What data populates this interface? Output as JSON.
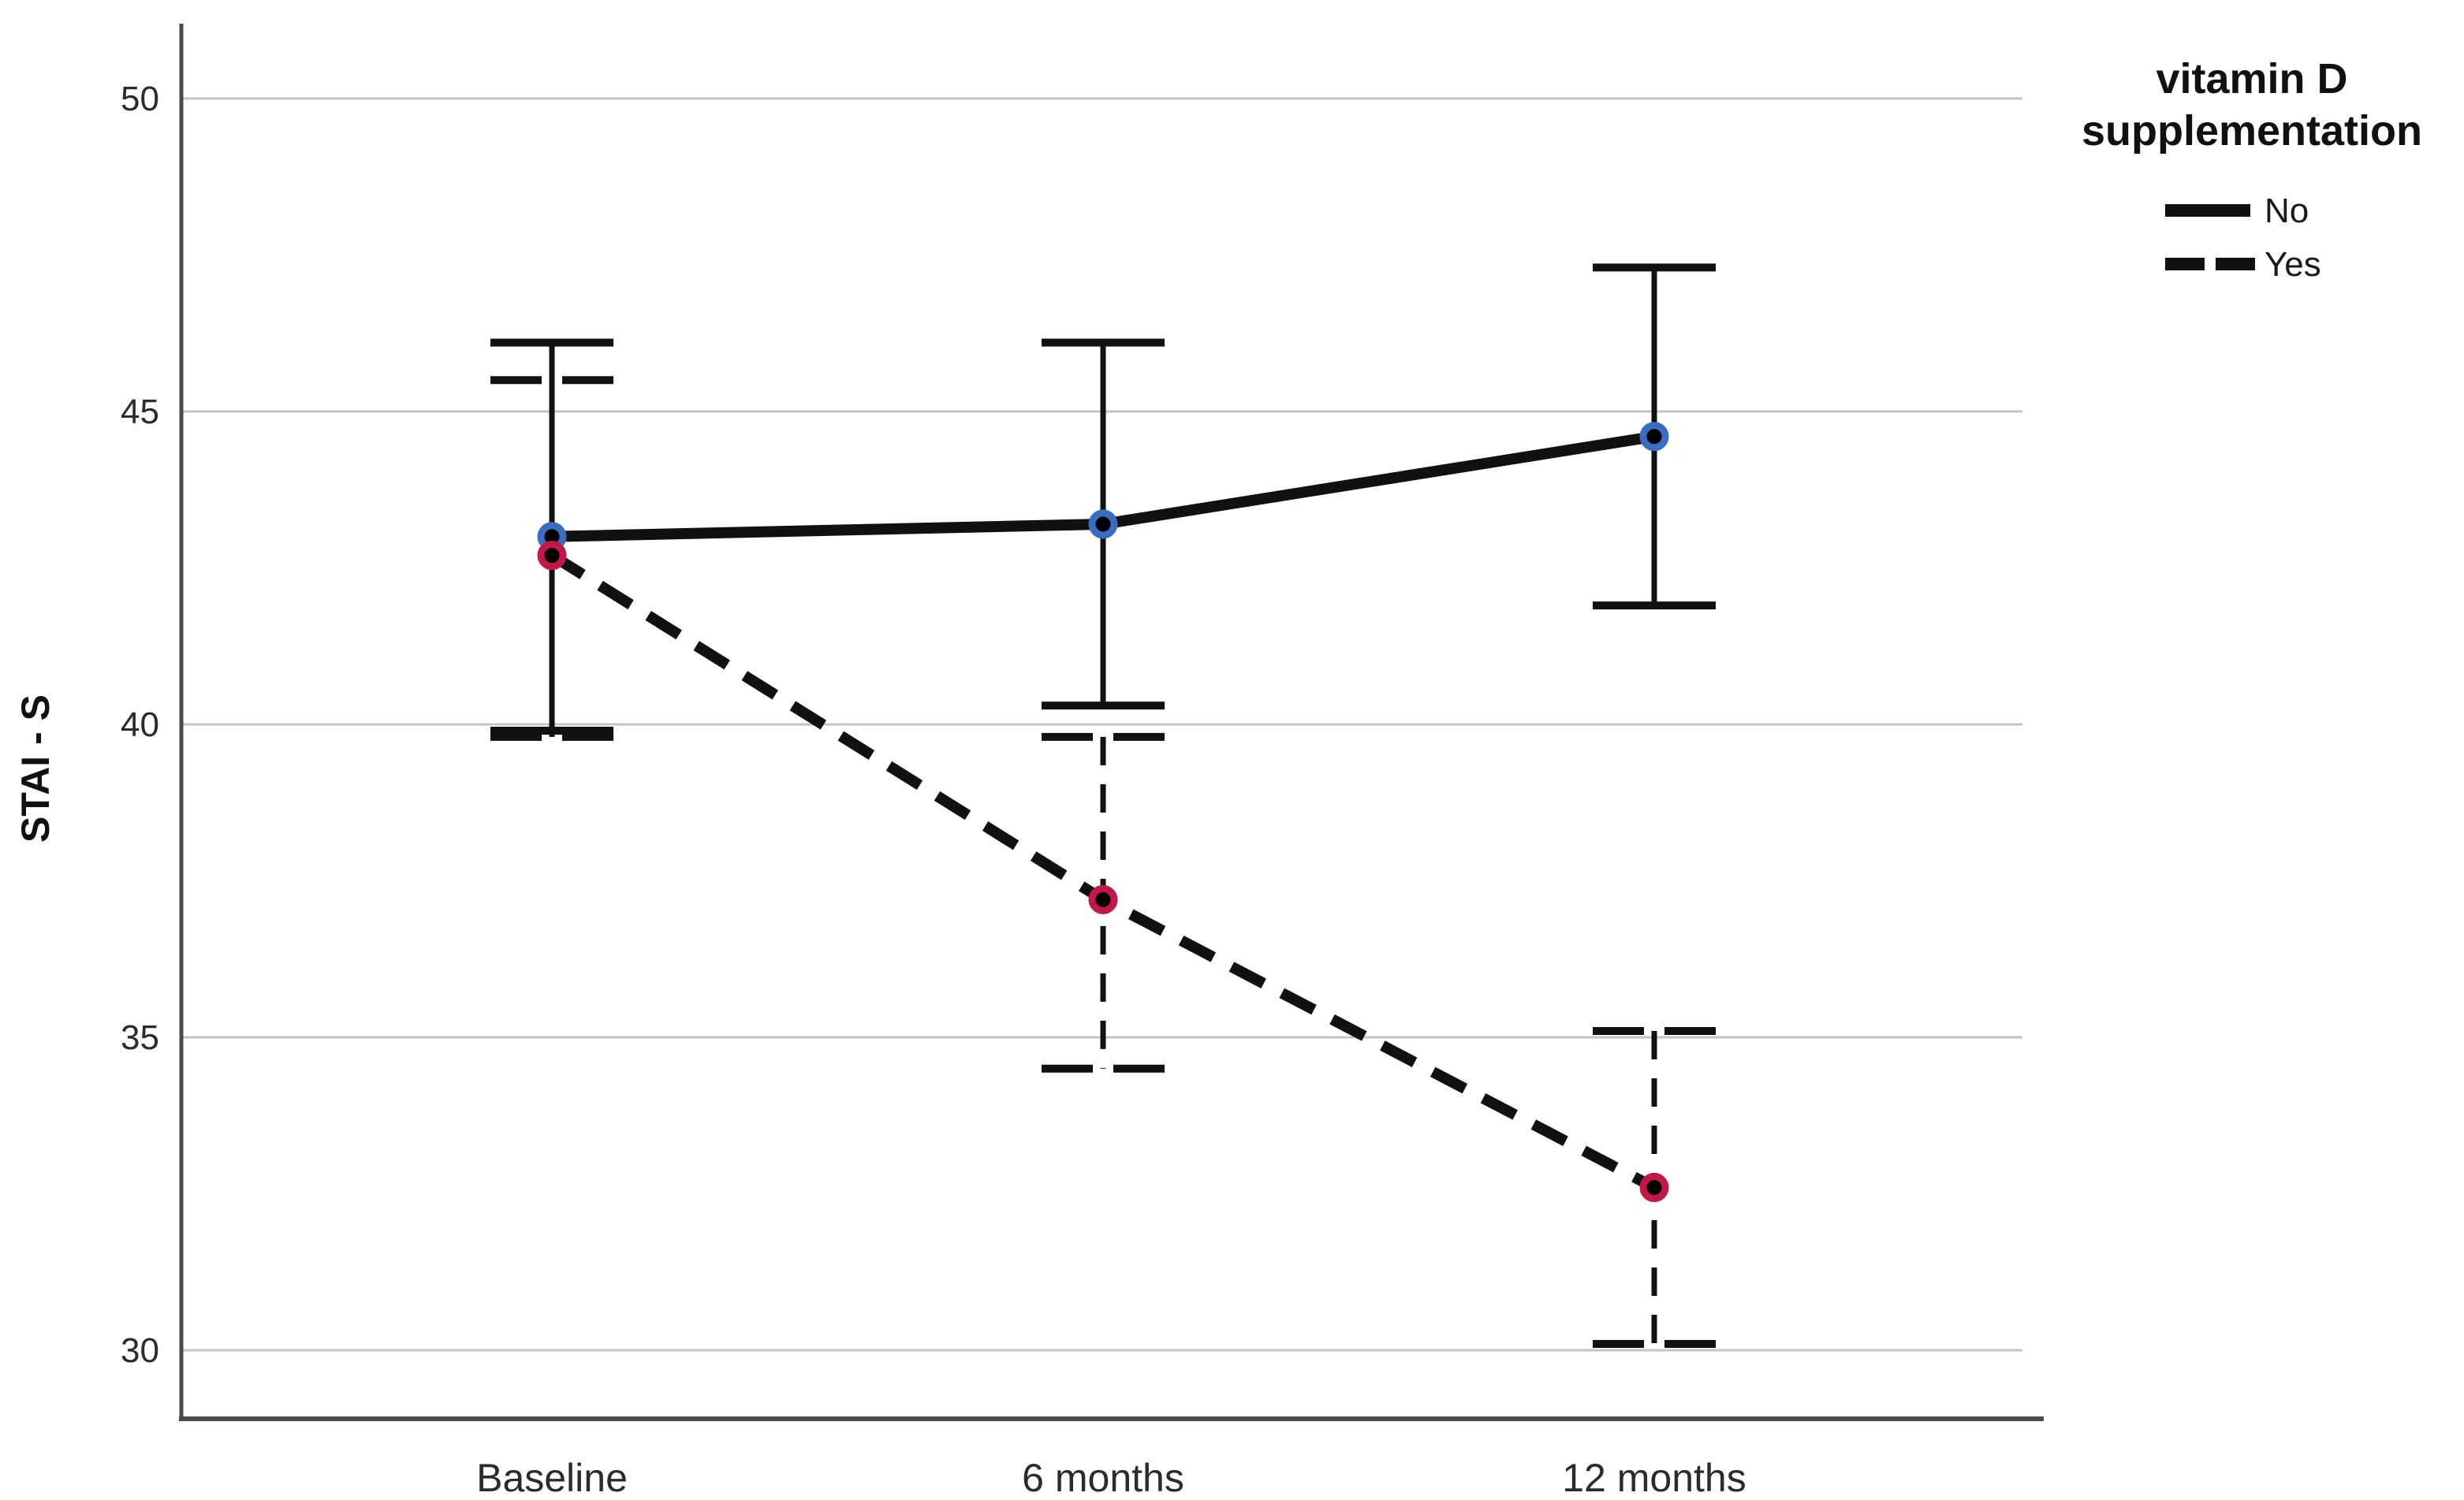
{
  "chart_data": {
    "type": "line",
    "title": "",
    "categories": [
      "Baseline",
      "6 months",
      "12 months"
    ],
    "xlabel": "",
    "ylabel": "STAI - S",
    "ylim": [
      29.0,
      51.2
    ],
    "yticks": [
      30,
      35,
      40,
      45,
      50
    ],
    "grid": "horizontal-only",
    "error_bars": "95% CI with caps",
    "legend": {
      "title_line1": "vitamin D",
      "title_line2": "supplementation",
      "position": "top-right outside plot",
      "entries": [
        {
          "label": "No",
          "line_style": "solid"
        },
        {
          "label": "Yes",
          "line_style": "dashed"
        }
      ]
    },
    "series": [
      {
        "name": "No",
        "line_style": "solid",
        "line_color": "#111111",
        "marker": "circle-black-fill",
        "marker_ring_color": "#3A6CC0",
        "values": [
          43.0,
          43.2,
          44.6
        ],
        "ci_low": [
          39.9,
          40.3,
          41.9
        ],
        "ci_high": [
          46.1,
          46.1,
          47.3
        ]
      },
      {
        "name": "Yes",
        "line_style": "dashed",
        "line_color": "#111111",
        "marker": "circle-black-fill",
        "marker_ring_color": "#C21747",
        "values": [
          42.7,
          37.2,
          32.6
        ],
        "ci_low": [
          39.8,
          34.5,
          30.1
        ],
        "ci_high": [
          45.5,
          39.8,
          35.1
        ]
      }
    ],
    "colors": {
      "series_line": "#111111",
      "gridline": "#c3c3c3",
      "axis_line": "#4a4a4a",
      "text": "#2b2b2b",
      "marker_fill": "#000000",
      "no_marker_ring": "#3A6CC0",
      "yes_marker_ring": "#C21747",
      "background": "#ffffff"
    }
  }
}
